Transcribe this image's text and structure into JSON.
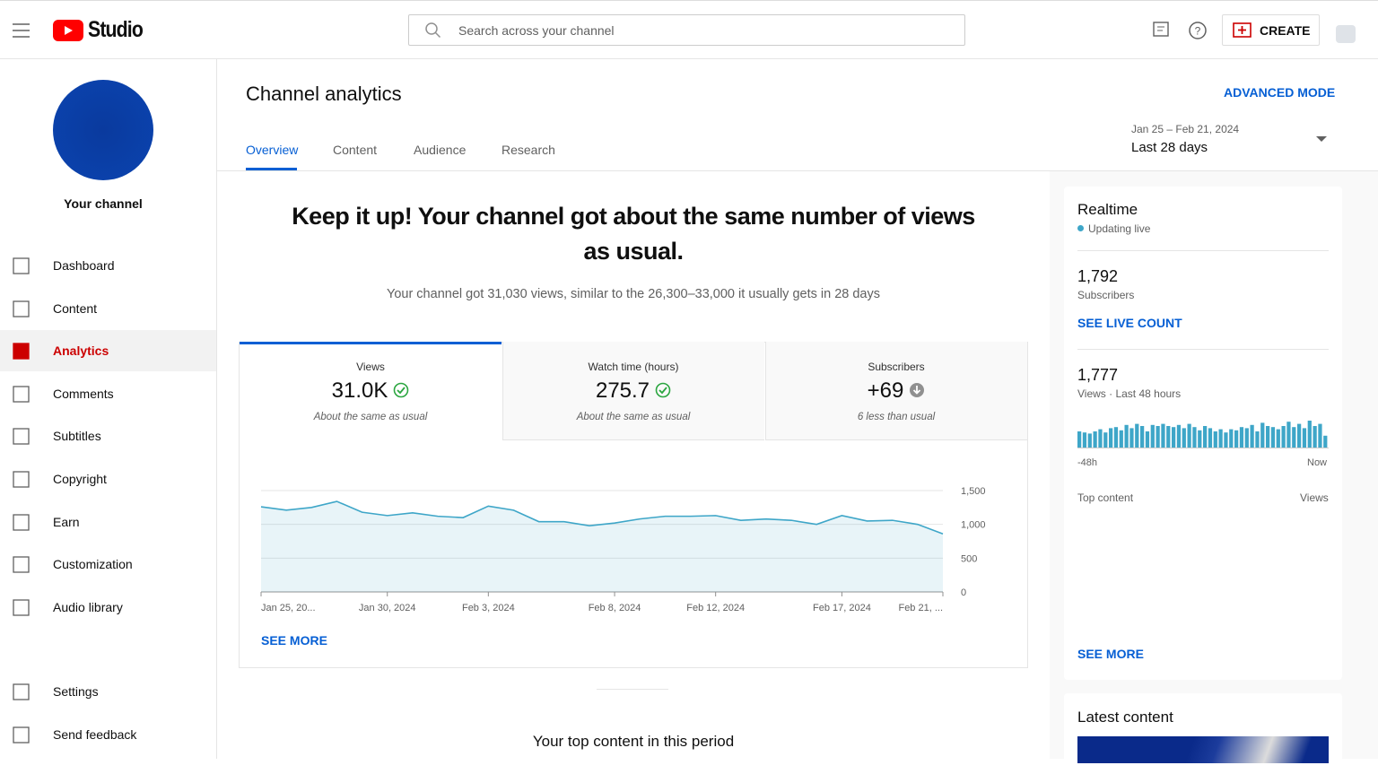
{
  "header": {
    "logo": "Studio",
    "search_placeholder": "Search across your channel",
    "create": "CREATE"
  },
  "sidebar": {
    "channel": "Your channel",
    "nav": [
      "Dashboard",
      "Content",
      "Analytics",
      "Comments",
      "Subtitles",
      "Copyright",
      "Earn",
      "Customization",
      "Audio library"
    ],
    "active": "Analytics",
    "bottom": [
      "Settings",
      "Send feedback"
    ]
  },
  "page": {
    "title": "Channel analytics",
    "advanced": "ADVANCED MODE",
    "tabs": [
      "Overview",
      "Content",
      "Audience",
      "Research"
    ],
    "active_tab": "Overview",
    "date_range": "Jan 25 – Feb 21, 2024",
    "period": "Last 28 days"
  },
  "summary": {
    "headline": "Keep it up! Your channel got about the same number of views as usual.",
    "text": "Your channel got 31,030 views, similar to the 26,300–33,000 it usually gets in 28 days"
  },
  "metrics": [
    {
      "label": "Views",
      "value": "31.0K",
      "note": "About the same as usual"
    },
    {
      "label": "Watch time (hours)",
      "value": "275.7",
      "note": "About the same as usual"
    },
    {
      "label": "Subscribers",
      "value": "+69",
      "note": "6 less than usual"
    }
  ],
  "chart_data": [
    {
      "type": "line",
      "categories": [
        "Jan 25, 20...",
        null,
        null,
        null,
        null,
        "Jan 30, 2024",
        null,
        null,
        null,
        "Feb 3, 2024",
        null,
        null,
        null,
        null,
        "Feb 8, 2024",
        null,
        null,
        null,
        "Feb 12, 2024",
        null,
        null,
        null,
        null,
        "Feb 17, 2024",
        null,
        null,
        null,
        "Feb 21, ..."
      ],
      "series": [
        {
          "name": "Views",
          "color": "#3ea6c8",
          "values": [
            1260,
            1210,
            1250,
            1340,
            1180,
            1130,
            1170,
            1120,
            1100,
            1270,
            1210,
            1040,
            1040,
            980,
            1020,
            1080,
            1120,
            1120,
            1130,
            1060,
            1080,
            1060,
            1000,
            1130,
            1050,
            1060,
            1000,
            860
          ]
        }
      ],
      "ylim": [
        0,
        1500
      ],
      "yticks": [
        0,
        500,
        {
          "value": 1000,
          "label": "1,000"
        },
        {
          "value": 1500,
          "label": "1,500"
        }
      ],
      "grid": true
    },
    {
      "type": "bar",
      "color": "#3ea6c8",
      "values": [
        30,
        28,
        26,
        30,
        34,
        28,
        36,
        38,
        32,
        42,
        36,
        44,
        40,
        30,
        42,
        40,
        44,
        40,
        38,
        42,
        36,
        44,
        38,
        32,
        40,
        36,
        30,
        34,
        28,
        34,
        32,
        38,
        36,
        42,
        30,
        46,
        40,
        38,
        34,
        40,
        48,
        38,
        44,
        36,
        50,
        40,
        44,
        22
      ]
    }
  ],
  "realtime": {
    "title": "Realtime",
    "status": "Updating live",
    "subscribers": "1,792",
    "subscribers_label": "Subscribers",
    "live_count": "SEE LIVE COUNT",
    "views": "1,777",
    "views_label": "Views · Last 48 hours",
    "start": "-48h",
    "end": "Now",
    "top_content": "Top content",
    "top_views": "Views",
    "see_more": "SEE MORE"
  },
  "see_more": "SEE MORE",
  "top_period": "Your top content in this period",
  "latest": "Latest content"
}
